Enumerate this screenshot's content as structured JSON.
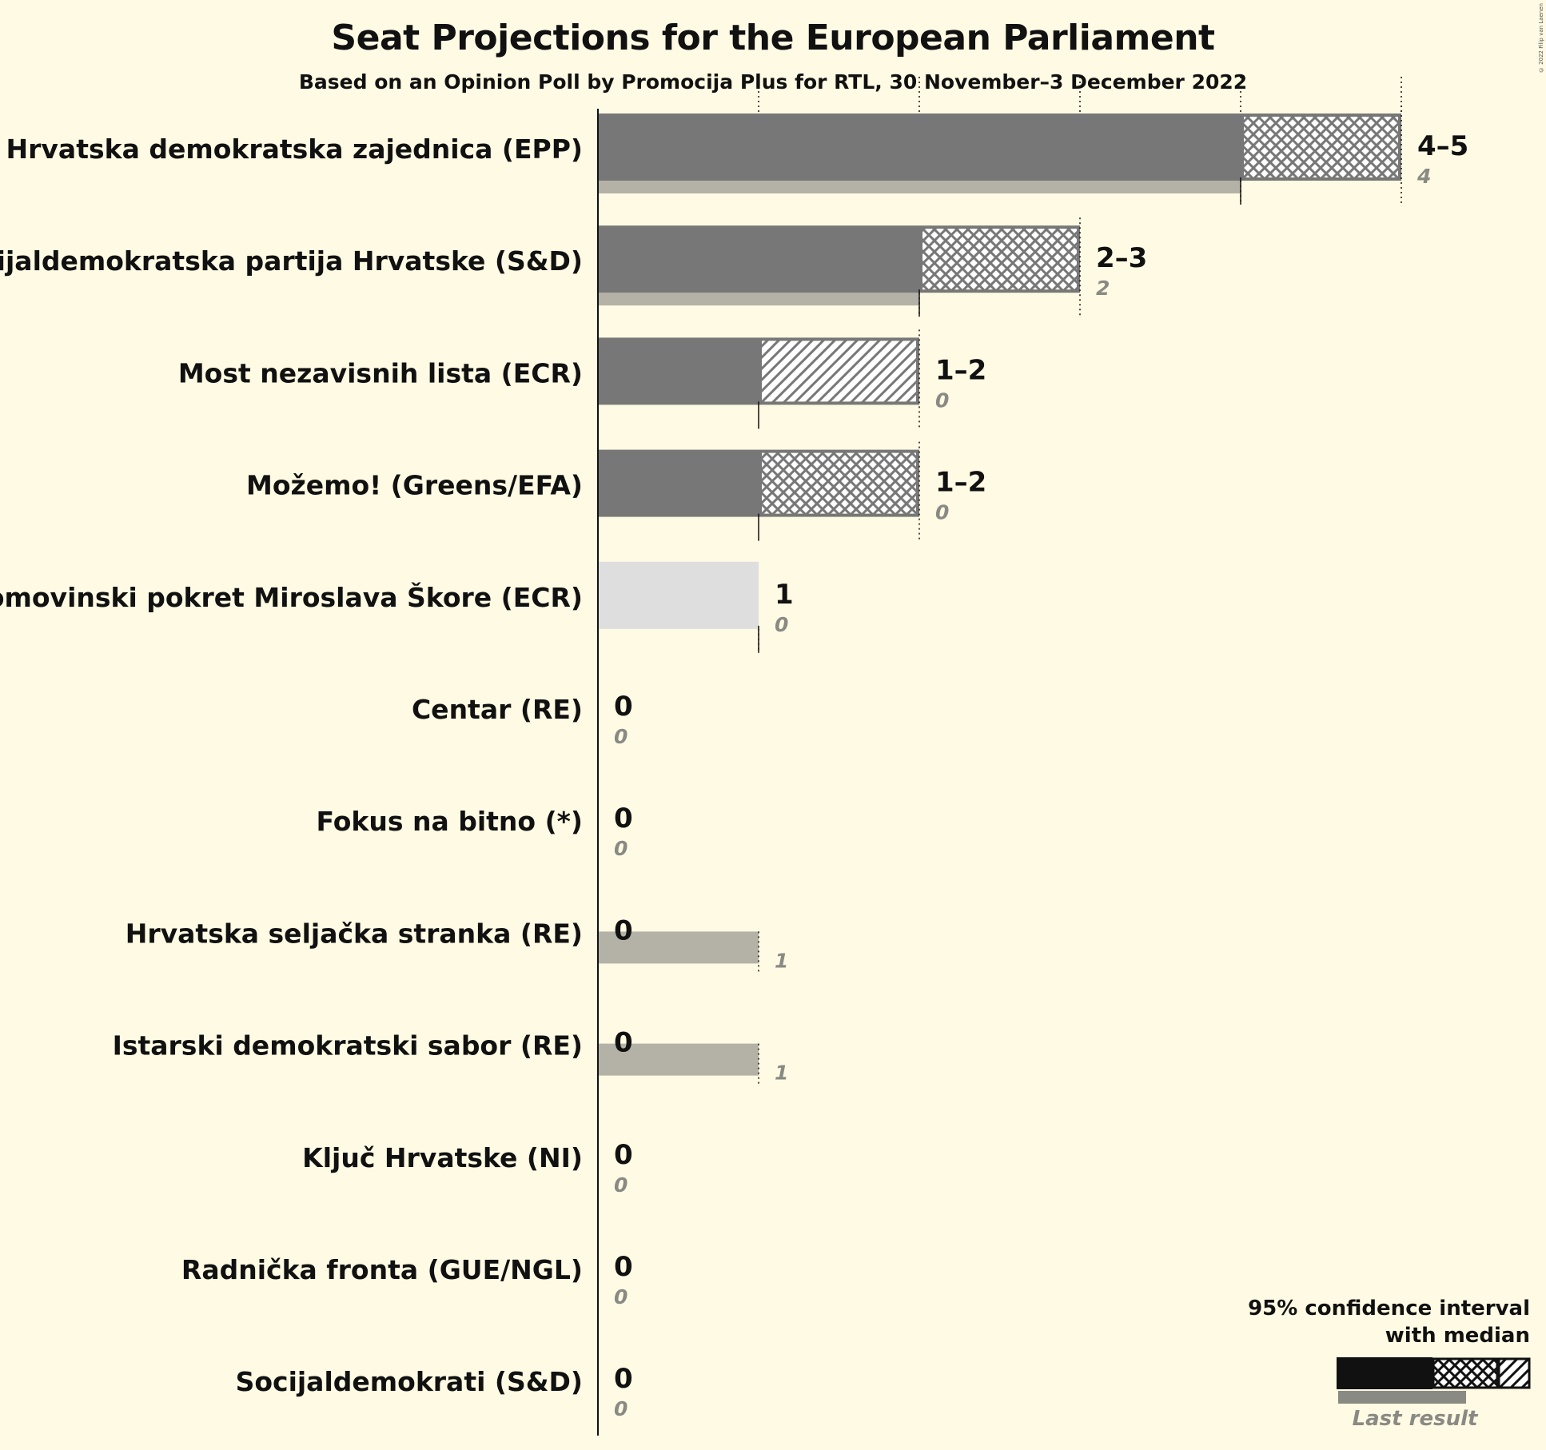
{
  "copyright": "© 2022 Filip van Laenen",
  "chart_data": {
    "type": "bar",
    "orientation": "horizontal",
    "title": "Seat Projections for the European Parliament",
    "subtitle": "Based on an Opinion Poll by Promocija Plus for RTL, 30 November–3 December 2022",
    "x_scale_max": 5,
    "grid": true,
    "legend_position": "bottom-right",
    "legend": {
      "ci_label_line1": "95% confidence interval",
      "ci_label_line2": "with median",
      "last_result_label": "Last result"
    },
    "colors": {
      "median_bar": "#777777",
      "interval_stroke": "#777777",
      "last_result": "#b4b2a7",
      "no_group_bar": "#dedede",
      "legend_bar": "#111111",
      "legend_last": "#8a8a84"
    },
    "categories": [
      "Hrvatska demokratska zajednica (EPP)",
      "Socijaldemokratska partija Hrvatske (S&D)",
      "Most nezavisnih lista (ECR)",
      "Možemo! (Greens/EFA)",
      "Domovinski pokret Miroslava Škore (ECR)",
      "Centar (RE)",
      "Fokus na bitno (*)",
      "Hrvatska seljačka stranka (RE)",
      "Istarski demokratski sabor (RE)",
      "Ključ Hrvatske (NI)",
      "Radnička fronta (GUE/NGL)",
      "Socijaldemokrati (S&D)"
    ],
    "series": [
      {
        "name": "95% confidence interval",
        "values": [
          {
            "low": 4,
            "median": 4,
            "high": 5,
            "pattern": "crosshatch",
            "range_label": "4–5"
          },
          {
            "low": 2,
            "median": 2,
            "high": 3,
            "pattern": "crosshatch",
            "range_label": "2–3"
          },
          {
            "low": 1,
            "median": 1,
            "high": 2,
            "pattern": "diagonal",
            "range_label": "1–2"
          },
          {
            "low": 1,
            "median": 1,
            "high": 2,
            "pattern": "crosshatch",
            "range_label": "1–2"
          },
          {
            "low": 1,
            "median": 1,
            "high": 1,
            "pattern": "none",
            "range_label": "1",
            "no_group": true
          },
          {
            "low": 0,
            "median": 0,
            "high": 0,
            "pattern": "none",
            "range_label": "0"
          },
          {
            "low": 0,
            "median": 0,
            "high": 0,
            "pattern": "none",
            "range_label": "0"
          },
          {
            "low": 0,
            "median": 0,
            "high": 0,
            "pattern": "none",
            "range_label": "0"
          },
          {
            "low": 0,
            "median": 0,
            "high": 0,
            "pattern": "none",
            "range_label": "0"
          },
          {
            "low": 0,
            "median": 0,
            "high": 0,
            "pattern": "none",
            "range_label": "0"
          },
          {
            "low": 0,
            "median": 0,
            "high": 0,
            "pattern": "none",
            "range_label": "0"
          },
          {
            "low": 0,
            "median": 0,
            "high": 0,
            "pattern": "none",
            "range_label": "0"
          }
        ]
      },
      {
        "name": "Last result",
        "values": [
          4,
          2,
          0,
          0,
          0,
          0,
          0,
          1,
          1,
          0,
          0,
          0
        ]
      }
    ]
  }
}
